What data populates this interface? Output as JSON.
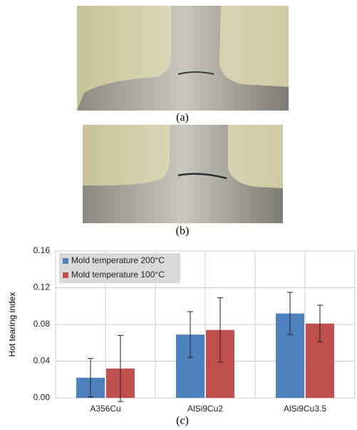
{
  "captions": [
    "(a)",
    "(b)",
    "(c)"
  ],
  "chart_data": {
    "type": "bar",
    "ylabel": "Hot tearing index",
    "categories": [
      "A356Cu",
      "AlSi9Cu2",
      "AlSi9Cu3.5"
    ],
    "series": [
      {
        "name": "Mold temperature 200°C",
        "color": "#4f81bd",
        "values": [
          0.022,
          0.069,
          0.092
        ],
        "errors": [
          0.021,
          0.025,
          0.023
        ]
      },
      {
        "name": "Mold temperature 100°C",
        "color": "#c0504d",
        "values": [
          0.032,
          0.074,
          0.081
        ],
        "errors": [
          0.036,
          0.035,
          0.02
        ]
      }
    ],
    "ylim": [
      0,
      0.16
    ],
    "yticks": [
      {
        "value": 0,
        "label": "0.00"
      },
      {
        "value": 0.04,
        "label": "0.04"
      },
      {
        "value": 0.08,
        "label": "0.08"
      },
      {
        "value": 0.12,
        "label": "0.12"
      },
      {
        "value": 0.16,
        "label": "0.16"
      }
    ],
    "grid": true,
    "legend": "top-left"
  }
}
